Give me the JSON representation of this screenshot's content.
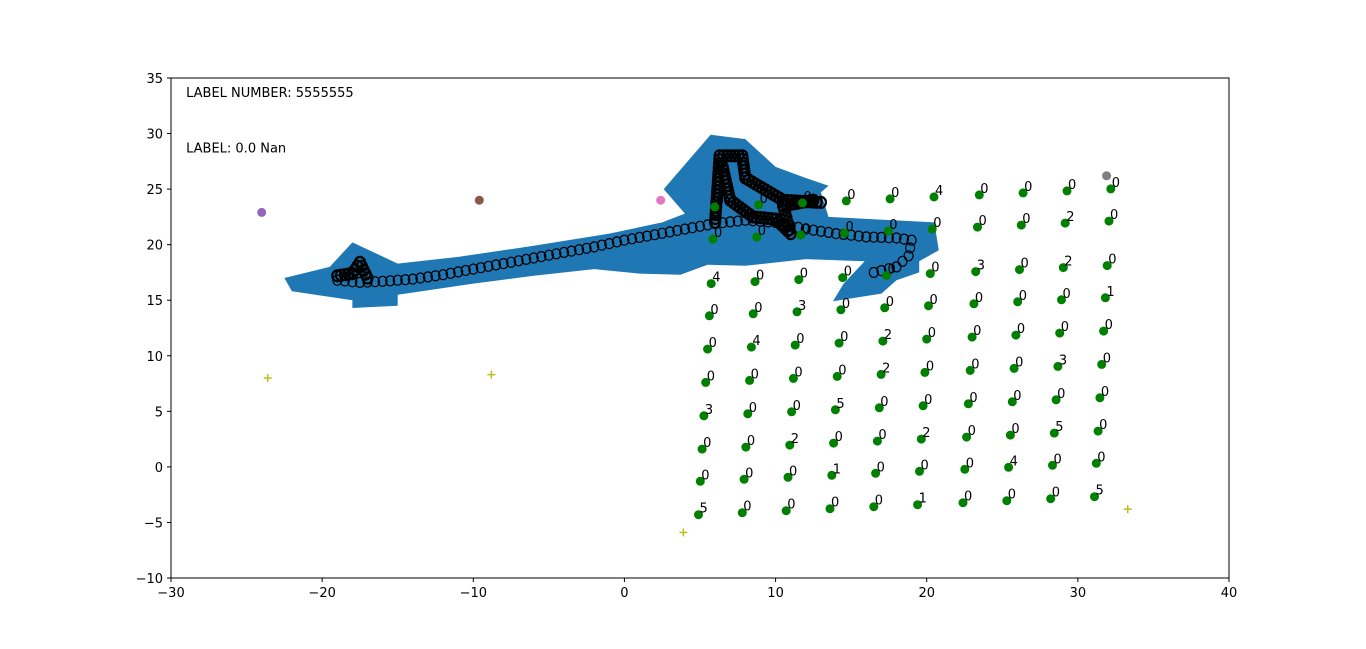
{
  "chart_data": {
    "type": "scatter",
    "xlim": [
      -30,
      40
    ],
    "ylim": [
      -10,
      35
    ],
    "x_ticks": [
      -30,
      -20,
      -10,
      0,
      10,
      20,
      30,
      40
    ],
    "y_ticks": [
      -10,
      -5,
      0,
      5,
      10,
      15,
      20,
      25,
      30,
      35
    ],
    "x_tick_labels": [
      "−30",
      "−20",
      "−10",
      "0",
      "10",
      "20",
      "30",
      "40"
    ],
    "y_tick_labels": [
      "−10",
      "−5",
      "0",
      "5",
      "10",
      "15",
      "20",
      "25",
      "30",
      "35"
    ],
    "grid": false,
    "annotations": [
      {
        "text": "LABEL NUMBER: 5555555",
        "x": -29.0,
        "y": 33.3
      },
      {
        "text": "LABEL: 0.0 Nan",
        "x": -29.0,
        "y": 28.3
      }
    ],
    "colors": {
      "region": "#1f77b4",
      "grid_points": "#008000",
      "path": "#000000",
      "markers_plus": "#bcbd22",
      "purple": "#9467bd",
      "brown": "#8c564b",
      "pink": "#e377c2",
      "gray": "#7f7f7f"
    },
    "grid_columns_x0": [
      4.9,
      7.8,
      10.7,
      13.6,
      16.5,
      19.4,
      22.4,
      25.3,
      28.2,
      31.1
    ],
    "grid_rows_y0": [
      -4.3,
      -1.3,
      1.6,
      4.6,
      7.6,
      10.6,
      13.6,
      16.5,
      20.5,
      23.4
    ],
    "grid_row_slope": 0.18,
    "grid_col_shift": 0.12,
    "grid_point_labels": [
      [
        "5",
        "0",
        "0",
        "0",
        "0",
        "1",
        "0",
        "0",
        "0",
        "5"
      ],
      [
        "0",
        "0",
        "0",
        "1",
        "0",
        "0",
        "0",
        "4",
        "0",
        "0"
      ],
      [
        "0",
        "0",
        "2",
        "0",
        "0",
        "2",
        "0",
        "0",
        "5",
        "0"
      ],
      [
        "3",
        "0",
        "0",
        "5",
        "0",
        "0",
        "0",
        "0",
        "0",
        "0"
      ],
      [
        "0",
        "0",
        "0",
        "0",
        "2",
        "0",
        "0",
        "0",
        "3",
        "0"
      ],
      [
        "0",
        "4",
        "0",
        "0",
        "2",
        "0",
        "0",
        "0",
        "0",
        "0"
      ],
      [
        "0",
        "0",
        "3",
        "0",
        "0",
        "0",
        "0",
        "0",
        "0",
        "1"
      ],
      [
        "4",
        "0",
        "0",
        "0",
        "0",
        "0",
        "3",
        "0",
        "2",
        "0"
      ],
      [
        "0",
        "0",
        "0",
        "0",
        "0",
        "0",
        "0",
        "0",
        "2",
        "0"
      ],
      [
        "0",
        "0",
        "0",
        "0",
        "0",
        "4",
        "0",
        "0",
        "0",
        "0"
      ]
    ],
    "special_points": [
      {
        "name": "purple-point",
        "x": -24.0,
        "y": 22.9,
        "color": "#9467bd"
      },
      {
        "name": "brown-point",
        "x": -9.6,
        "y": 24.0,
        "color": "#8c564b"
      },
      {
        "name": "pink-point",
        "x": 2.4,
        "y": 24.0,
        "color": "#e377c2"
      },
      {
        "name": "gray-point",
        "x": 31.9,
        "y": 26.2,
        "color": "#7f7f7f"
      }
    ],
    "plus_markers": [
      {
        "x": -23.6,
        "y": 8.0
      },
      {
        "x": -8.8,
        "y": 8.3
      },
      {
        "x": 3.9,
        "y": -5.9
      },
      {
        "x": 33.3,
        "y": -3.8
      }
    ],
    "region_polygon": [
      [
        -22.5,
        17.0
      ],
      [
        -19.5,
        18.0
      ],
      [
        -18.0,
        20.2
      ],
      [
        -15.0,
        18.3
      ],
      [
        -11.0,
        18.9
      ],
      [
        -6.0,
        19.9
      ],
      [
        -1.0,
        21.0
      ],
      [
        2.5,
        22.0
      ],
      [
        4.0,
        22.8
      ],
      [
        2.6,
        25.0
      ],
      [
        5.7,
        29.9
      ],
      [
        8.0,
        29.5
      ],
      [
        10.0,
        27.0
      ],
      [
        12.0,
        26.0
      ],
      [
        13.5,
        25.3
      ],
      [
        13.0,
        24.7
      ],
      [
        13.5,
        22.5
      ],
      [
        20.5,
        22.0
      ],
      [
        20.8,
        19.5
      ],
      [
        19.5,
        18.5
      ],
      [
        19.5,
        17.5
      ],
      [
        18.0,
        16.8
      ],
      [
        17.0,
        15.6
      ],
      [
        13.8,
        14.9
      ],
      [
        14.5,
        16.5
      ],
      [
        15.9,
        18.5
      ],
      [
        12.0,
        18.7
      ],
      [
        8.0,
        18.1
      ],
      [
        5.5,
        18.2
      ],
      [
        3.7,
        17.3
      ],
      [
        1.0,
        17.4
      ],
      [
        -2.0,
        17.8
      ],
      [
        -6.0,
        17.2
      ],
      [
        -10.0,
        16.5
      ],
      [
        -15.0,
        15.5
      ],
      [
        -15.0,
        14.5
      ],
      [
        -18.0,
        14.3
      ],
      [
        -18.0,
        15.0
      ],
      [
        -22.0,
        15.8
      ]
    ],
    "path_points": [
      [
        -19.0,
        16.8
      ],
      [
        -17.5,
        16.6
      ],
      [
        -16.0,
        16.7
      ],
      [
        -14.0,
        16.9
      ],
      [
        -12.0,
        17.3
      ],
      [
        -10.0,
        17.8
      ],
      [
        -8.0,
        18.3
      ],
      [
        -6.0,
        18.8
      ],
      [
        -4.0,
        19.3
      ],
      [
        -2.0,
        19.8
      ],
      [
        0.0,
        20.4
      ],
      [
        2.0,
        20.9
      ],
      [
        4.0,
        21.4
      ],
      [
        6.0,
        21.9
      ],
      [
        8.0,
        22.2
      ],
      [
        10.0,
        22.0
      ],
      [
        12.0,
        21.4
      ],
      [
        14.0,
        21.0
      ],
      [
        16.0,
        20.7
      ],
      [
        18.0,
        20.6
      ],
      [
        19.0,
        20.4
      ],
      [
        18.8,
        19.0
      ],
      [
        18.0,
        18.0
      ],
      [
        16.5,
        17.5
      ]
    ],
    "path_spurs": [
      [
        [
          6.0,
          22.0
        ],
        [
          6.3,
          28.0
        ],
        [
          7.8,
          28.0
        ],
        [
          8.0,
          26.0
        ],
        [
          10.5,
          24.0
        ],
        [
          13.0,
          23.8
        ]
      ],
      [
        [
          6.5,
          27.0
        ],
        [
          7.0,
          24.0
        ],
        [
          8.5,
          22.5
        ],
        [
          10.0,
          22.3
        ],
        [
          11.0,
          21.0
        ],
        [
          10.5,
          23.5
        ],
        [
          12.5,
          24.0
        ]
      ],
      [
        [
          -19.0,
          17.2
        ],
        [
          -18.0,
          17.4
        ],
        [
          -17.5,
          18.4
        ],
        [
          -17.0,
          17.0
        ]
      ]
    ]
  }
}
